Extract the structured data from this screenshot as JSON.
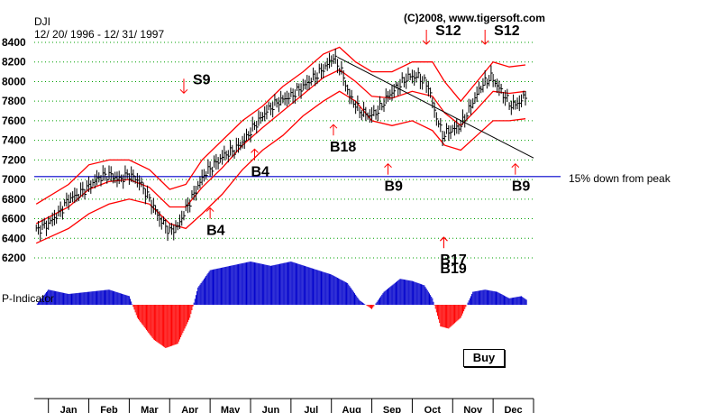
{
  "header": {
    "symbol": "DJI",
    "date_range": "12/ 20/ 1996 - 12/ 31/ 1997",
    "credit": "(C)2008, www.tigersoft.com"
  },
  "indicator_label": "P-Indicator",
  "buy_button_label": "Buy",
  "colors": {
    "bars": "#000000",
    "bands": "#ff0000",
    "grid": "#00a000",
    "reference_line": "#0000cc",
    "indicator_positive": "#0000cc",
    "indicator_negative": "#ff0000",
    "signal_arrows": "#ff0000"
  },
  "chart_data": {
    "type": "line",
    "title": "DJI",
    "subtitle": "12/ 20/ 1996 - 12/ 31/ 1997",
    "ylim": [
      6200,
      8400
    ],
    "yticks": [
      8400,
      8200,
      8000,
      7800,
      7600,
      7400,
      7200,
      7000,
      6800,
      6600,
      6400,
      6200
    ],
    "months": [
      "Jan",
      "Feb",
      "Mar",
      "Apr",
      "May",
      "Jun",
      "Jul",
      "Aug",
      "Sep",
      "Oct",
      "Nov",
      "Dec"
    ],
    "x_range_months": [
      -0.35,
      12.0
    ],
    "reference_line": {
      "value": 7030,
      "label": "15% down from peak"
    },
    "price": [
      [
        -0.3,
        6480
      ],
      [
        0.0,
        6550
      ],
      [
        0.25,
        6650
      ],
      [
        0.5,
        6800
      ],
      [
        0.75,
        6850
      ],
      [
        1.0,
        6930
      ],
      [
        1.25,
        7020
      ],
      [
        1.5,
        7050
      ],
      [
        1.75,
        7000
      ],
      [
        2.0,
        7050
      ],
      [
        2.25,
        6980
      ],
      [
        2.5,
        6800
      ],
      [
        2.75,
        6600
      ],
      [
        3.0,
        6470
      ],
      [
        3.2,
        6520
      ],
      [
        3.4,
        6700
      ],
      [
        3.6,
        6850
      ],
      [
        3.85,
        7050
      ],
      [
        4.1,
        7150
      ],
      [
        4.35,
        7250
      ],
      [
        4.6,
        7300
      ],
      [
        4.85,
        7400
      ],
      [
        5.1,
        7550
      ],
      [
        5.4,
        7700
      ],
      [
        5.7,
        7800
      ],
      [
        6.0,
        7850
      ],
      [
        6.3,
        7950
      ],
      [
        6.6,
        8050
      ],
      [
        6.85,
        8150
      ],
      [
        7.05,
        8250
      ],
      [
        7.25,
        8100
      ],
      [
        7.45,
        7850
      ],
      [
        7.7,
        7700
      ],
      [
        7.95,
        7650
      ],
      [
        8.15,
        7700
      ],
      [
        8.4,
        7850
      ],
      [
        8.65,
        7950
      ],
      [
        8.9,
        8050
      ],
      [
        9.15,
        8050
      ],
      [
        9.4,
        7950
      ],
      [
        9.55,
        7700
      ],
      [
        9.75,
        7450
      ],
      [
        9.95,
        7500
      ],
      [
        10.2,
        7550
      ],
      [
        10.45,
        7750
      ],
      [
        10.7,
        7950
      ],
      [
        10.95,
        8050
      ],
      [
        11.2,
        7900
      ],
      [
        11.45,
        7750
      ],
      [
        11.7,
        7800
      ],
      [
        11.85,
        7900
      ]
    ],
    "band_upper": [
      [
        -0.3,
        6750
      ],
      [
        0.5,
        6950
      ],
      [
        1.0,
        7150
      ],
      [
        1.5,
        7200
      ],
      [
        2.0,
        7200
      ],
      [
        2.5,
        7100
      ],
      [
        3.0,
        6900
      ],
      [
        3.4,
        6950
      ],
      [
        3.8,
        7200
      ],
      [
        4.3,
        7400
      ],
      [
        4.8,
        7600
      ],
      [
        5.3,
        7750
      ],
      [
        5.8,
        7950
      ],
      [
        6.3,
        8100
      ],
      [
        6.8,
        8280
      ],
      [
        7.2,
        8350
      ],
      [
        7.6,
        8200
      ],
      [
        8.0,
        8100
      ],
      [
        8.5,
        8100
      ],
      [
        9.0,
        8200
      ],
      [
        9.5,
        8200
      ],
      [
        9.8,
        8000
      ],
      [
        10.2,
        7800
      ],
      [
        10.6,
        8000
      ],
      [
        11.0,
        8200
      ],
      [
        11.4,
        8150
      ],
      [
        11.8,
        8170
      ]
    ],
    "band_lower": [
      [
        -0.3,
        6350
      ],
      [
        0.5,
        6500
      ],
      [
        1.0,
        6650
      ],
      [
        1.5,
        6750
      ],
      [
        2.0,
        6800
      ],
      [
        2.5,
        6750
      ],
      [
        3.0,
        6550
      ],
      [
        3.4,
        6500
      ],
      [
        3.8,
        6650
      ],
      [
        4.3,
        6850
      ],
      [
        4.8,
        7100
      ],
      [
        5.3,
        7300
      ],
      [
        5.8,
        7450
      ],
      [
        6.3,
        7650
      ],
      [
        6.8,
        7800
      ],
      [
        7.2,
        7900
      ],
      [
        7.6,
        7800
      ],
      [
        8.0,
        7600
      ],
      [
        8.5,
        7550
      ],
      [
        9.0,
        7600
      ],
      [
        9.5,
        7500
      ],
      [
        9.8,
        7350
      ],
      [
        10.2,
        7300
      ],
      [
        10.6,
        7450
      ],
      [
        11.0,
        7600
      ],
      [
        11.4,
        7600
      ],
      [
        11.8,
        7620
      ]
    ],
    "band_middle": [
      [
        -0.3,
        6550
      ],
      [
        0.5,
        6720
      ],
      [
        1.0,
        6900
      ],
      [
        1.5,
        6980
      ],
      [
        2.0,
        7000
      ],
      [
        2.5,
        6920
      ],
      [
        3.0,
        6720
      ],
      [
        3.4,
        6720
      ],
      [
        3.8,
        6920
      ],
      [
        4.3,
        7120
      ],
      [
        4.8,
        7350
      ],
      [
        5.3,
        7530
      ],
      [
        5.8,
        7700
      ],
      [
        6.3,
        7870
      ],
      [
        6.8,
        8040
      ],
      [
        7.2,
        8120
      ],
      [
        7.6,
        8000
      ],
      [
        8.0,
        7850
      ],
      [
        8.5,
        7830
      ],
      [
        9.0,
        7900
      ],
      [
        9.5,
        7850
      ],
      [
        9.8,
        7680
      ],
      [
        10.2,
        7550
      ],
      [
        10.6,
        7720
      ],
      [
        11.0,
        7900
      ],
      [
        11.4,
        7880
      ],
      [
        11.8,
        7900
      ]
    ],
    "trendline": [
      [
        7.15,
        8250
      ],
      [
        12.0,
        7220
      ]
    ],
    "signals": [
      {
        "label": "S9",
        "month": 3.35,
        "value": 7900,
        "direction": "down"
      },
      {
        "label": "B4",
        "month": 4.0,
        "value": 6600,
        "direction": "up"
      },
      {
        "label": "B4",
        "month": 5.1,
        "value": 7200,
        "direction": "up"
      },
      {
        "label": "B18",
        "month": 7.05,
        "value": 7450,
        "direction": "up"
      },
      {
        "label": "B9",
        "month": 8.4,
        "value": 7050,
        "direction": "up"
      },
      {
        "label": "S12",
        "month": 9.35,
        "value": 8400,
        "direction": "down"
      },
      {
        "label": "B17",
        "month": 9.78,
        "value": 6300,
        "direction": "up"
      },
      {
        "label": "B19",
        "month": 9.78,
        "value": 6300,
        "direction": "up"
      },
      {
        "label": "S12",
        "month": 10.8,
        "value": 8400,
        "direction": "down"
      },
      {
        "label": "B9",
        "month": 11.55,
        "value": 7050,
        "direction": "up"
      }
    ],
    "indicator": [
      [
        -0.3,
        0.0
      ],
      [
        0.0,
        0.35
      ],
      [
        0.5,
        0.25
      ],
      [
        1.0,
        0.3
      ],
      [
        1.5,
        0.35
      ],
      [
        2.0,
        0.2
      ],
      [
        2.2,
        -0.3
      ],
      [
        2.6,
        -0.8
      ],
      [
        2.9,
        -1.0
      ],
      [
        3.2,
        -0.9
      ],
      [
        3.5,
        -0.3
      ],
      [
        3.7,
        0.4
      ],
      [
        4.0,
        0.8
      ],
      [
        4.5,
        0.9
      ],
      [
        5.0,
        1.0
      ],
      [
        5.5,
        0.9
      ],
      [
        6.0,
        1.0
      ],
      [
        6.5,
        0.85
      ],
      [
        7.0,
        0.7
      ],
      [
        7.4,
        0.5
      ],
      [
        7.7,
        0.1
      ],
      [
        8.0,
        -0.1
      ],
      [
        8.3,
        0.3
      ],
      [
        8.7,
        0.6
      ],
      [
        9.0,
        0.55
      ],
      [
        9.3,
        0.45
      ],
      [
        9.5,
        0.15
      ],
      [
        9.7,
        -0.5
      ],
      [
        9.9,
        -0.55
      ],
      [
        10.2,
        -0.3
      ],
      [
        10.5,
        0.3
      ],
      [
        10.8,
        0.35
      ],
      [
        11.1,
        0.3
      ],
      [
        11.4,
        0.15
      ],
      [
        11.7,
        0.2
      ],
      [
        11.85,
        0.1
      ]
    ]
  }
}
